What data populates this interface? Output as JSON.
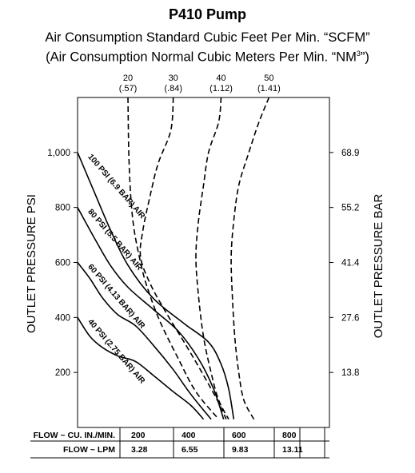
{
  "header": {
    "title": "P410 Pump",
    "subtitle1": "Air Consumption Standard Cubic Feet Per Min. “SCFM”",
    "subtitle2_main": "(Air Consumption Normal Cubic Meters Per Min. “NM",
    "subtitle2_sup": "3",
    "subtitle2_end": "”)"
  },
  "chart_data": {
    "type": "line",
    "title": "P410 Pump",
    "ylabel_left": "OUTLET PRESSURE PSI",
    "ylabel_right": "OUTLET PRESSURE BAR",
    "xlim": [
      0,
      1000
    ],
    "ylim": [
      0,
      1200
    ],
    "y_ticks_psi": [
      {
        "value": 200,
        "label": "200"
      },
      {
        "value": 400,
        "label": "400"
      },
      {
        "value": 600,
        "label": "600"
      },
      {
        "value": 800,
        "label": "800"
      },
      {
        "value": 1000,
        "label": "1,000"
      }
    ],
    "y_ticks_bar": [
      {
        "value": 200,
        "label": "13.8"
      },
      {
        "value": 400,
        "label": "27.6"
      },
      {
        "value": 600,
        "label": "41.4"
      },
      {
        "value": 800,
        "label": "55.2"
      },
      {
        "value": 1000,
        "label": "68.9"
      }
    ],
    "x_table": {
      "row1_label": "FLOW ~ CU. IN./MIN.",
      "row2_label": "FLOW ~ LPM",
      "columns": [
        {
          "x": 200,
          "cu_in": "200",
          "lpm": "3.28"
        },
        {
          "x": 400,
          "cu_in": "400",
          "lpm": "6.55"
        },
        {
          "x": 600,
          "cu_in": "600",
          "lpm": "9.83"
        },
        {
          "x": 800,
          "cu_in": "800",
          "lpm": "13.11"
        }
      ]
    },
    "pressure_curves": [
      {
        "name": "100 PSI (6.9 BAR) AIR",
        "points": [
          [
            0,
            1000
          ],
          [
            60,
            870
          ],
          [
            130,
            720
          ],
          [
            200,
            590
          ],
          [
            300,
            470
          ],
          [
            420,
            380
          ],
          [
            520,
            310
          ],
          [
            570,
            230
          ],
          [
            600,
            140
          ],
          [
            620,
            30
          ]
        ]
      },
      {
        "name": "80 PSI (5.5 BAR) AIR",
        "points": [
          [
            0,
            800
          ],
          [
            60,
            700
          ],
          [
            130,
            590
          ],
          [
            200,
            510
          ],
          [
            300,
            430
          ],
          [
            400,
            350
          ],
          [
            480,
            250
          ],
          [
            540,
            140
          ],
          [
            580,
            30
          ]
        ]
      },
      {
        "name": "60 PSI (4.13 BAR) AIR",
        "points": [
          [
            0,
            600
          ],
          [
            50,
            540
          ],
          [
            100,
            470
          ],
          [
            160,
            410
          ],
          [
            230,
            370
          ],
          [
            300,
            300
          ],
          [
            380,
            210
          ],
          [
            450,
            120
          ],
          [
            530,
            30
          ]
        ]
      },
      {
        "name": "40 PSI (2.75 BAR) AIR",
        "points": [
          [
            0,
            400
          ],
          [
            50,
            330
          ],
          [
            100,
            290
          ],
          [
            160,
            260
          ],
          [
            230,
            240
          ],
          [
            300,
            190
          ],
          [
            380,
            130
          ],
          [
            450,
            80
          ],
          [
            500,
            30
          ]
        ]
      }
    ],
    "air_consumption_curves": [
      {
        "scfm": "20",
        "nm3": "(.57)",
        "points": [
          [
            200,
            1200
          ],
          [
            205,
            950
          ],
          [
            220,
            750
          ],
          [
            250,
            600
          ],
          [
            280,
            500
          ],
          [
            330,
            380
          ],
          [
            400,
            250
          ],
          [
            470,
            130
          ],
          [
            560,
            30
          ]
        ]
      },
      {
        "scfm": "30",
        "nm3": "(.84)",
        "points": [
          [
            380,
            1200
          ],
          [
            370,
            1080
          ],
          [
            320,
            960
          ],
          [
            290,
            850
          ],
          [
            260,
            720
          ],
          [
            250,
            620
          ],
          [
            290,
            520
          ],
          [
            350,
            420
          ],
          [
            430,
            300
          ],
          [
            500,
            190
          ],
          [
            560,
            90
          ],
          [
            590,
            30
          ]
        ]
      },
      {
        "scfm": "40",
        "nm3": "(1.12)",
        "points": [
          [
            570,
            1200
          ],
          [
            560,
            1110
          ],
          [
            520,
            1000
          ],
          [
            500,
            880
          ],
          [
            480,
            750
          ],
          [
            470,
            620
          ],
          [
            480,
            480
          ],
          [
            500,
            330
          ],
          [
            530,
            200
          ],
          [
            560,
            100
          ],
          [
            600,
            30
          ]
        ]
      },
      {
        "scfm": "50",
        "nm3": "(1.41)",
        "points": [
          [
            760,
            1200
          ],
          [
            720,
            1110
          ],
          [
            680,
            1000
          ],
          [
            640,
            880
          ],
          [
            620,
            750
          ],
          [
            610,
            620
          ],
          [
            615,
            470
          ],
          [
            625,
            320
          ],
          [
            640,
            200
          ],
          [
            660,
            100
          ],
          [
            700,
            30
          ]
        ]
      }
    ]
  }
}
